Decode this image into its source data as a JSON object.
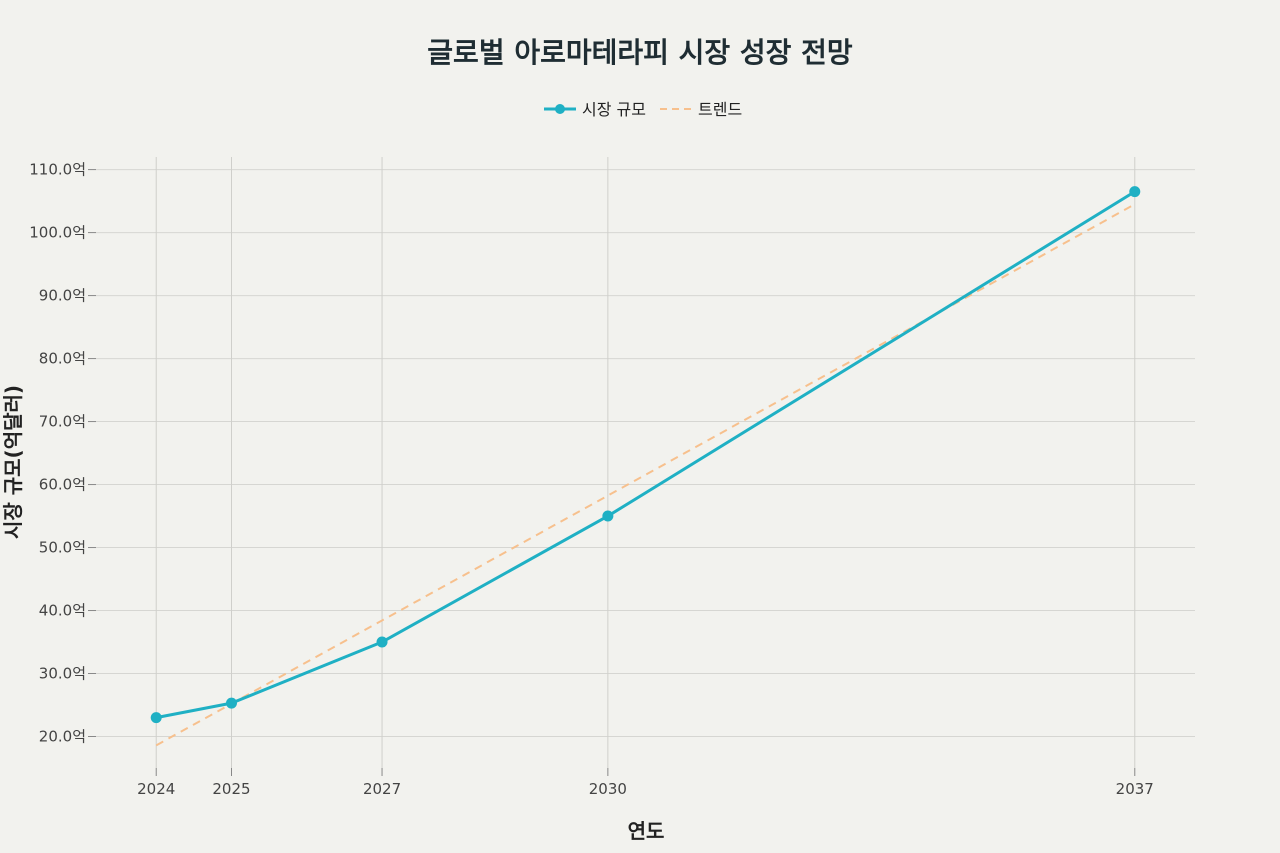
{
  "chart_data": {
    "type": "line",
    "title": "글로벌 아로마테라피 시장 성장 전망",
    "xlabel": "연도",
    "ylabel": "시장 규모(억달러)",
    "x": [
      2024,
      2025,
      2027,
      2030,
      2037
    ],
    "x_tick_labels": [
      "2024",
      "2025",
      "2027",
      "2030",
      "2037"
    ],
    "xlim": [
      2023.2,
      2037.8
    ],
    "ylim": [
      15,
      112
    ],
    "y_ticks": [
      20,
      30,
      40,
      50,
      60,
      70,
      80,
      90,
      100,
      110
    ],
    "y_tick_labels": [
      "20.0억",
      "30.0억",
      "40.0억",
      "50.0억",
      "60.0억",
      "70.0억",
      "80.0억",
      "90.0억",
      "100.0억",
      "110.0억"
    ],
    "grid": true,
    "legend_position": "top-center",
    "series": [
      {
        "name": "시장 규모",
        "style": "line+markers",
        "color": "#1fb0c4",
        "values": [
          23.0,
          25.3,
          35.0,
          55.0,
          106.5
        ]
      },
      {
        "name": "트렌드",
        "style": "dashed",
        "color": "#f7c08d",
        "x": [
          2024,
          2037
        ],
        "values": [
          18.6,
          104.5
        ]
      }
    ]
  }
}
